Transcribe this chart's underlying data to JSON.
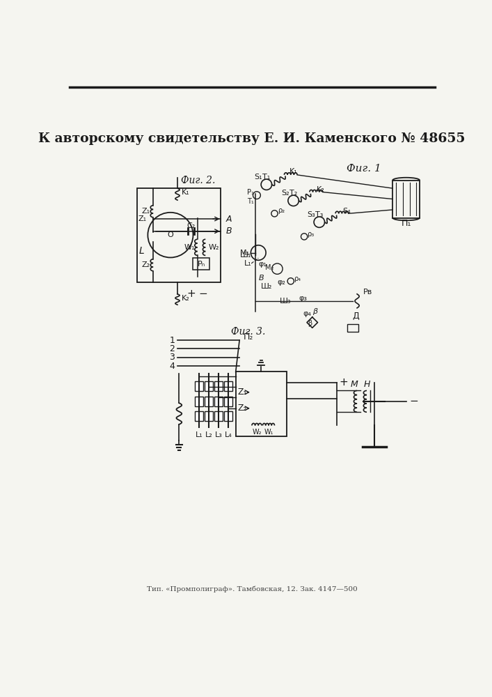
{
  "title": "К авторскому свидетельству Е. И. Каменского № 48655",
  "footer": "Тип. «Промполиграф». Тамбовская, 12. Зак. 4147—500",
  "bg_color": "#f5f5f0",
  "line_color": "#1a1a1a",
  "fig1_label": "Фиг. 1",
  "fig2_label": "Фиг. 2.",
  "fig3_label": "Фиг. 3."
}
